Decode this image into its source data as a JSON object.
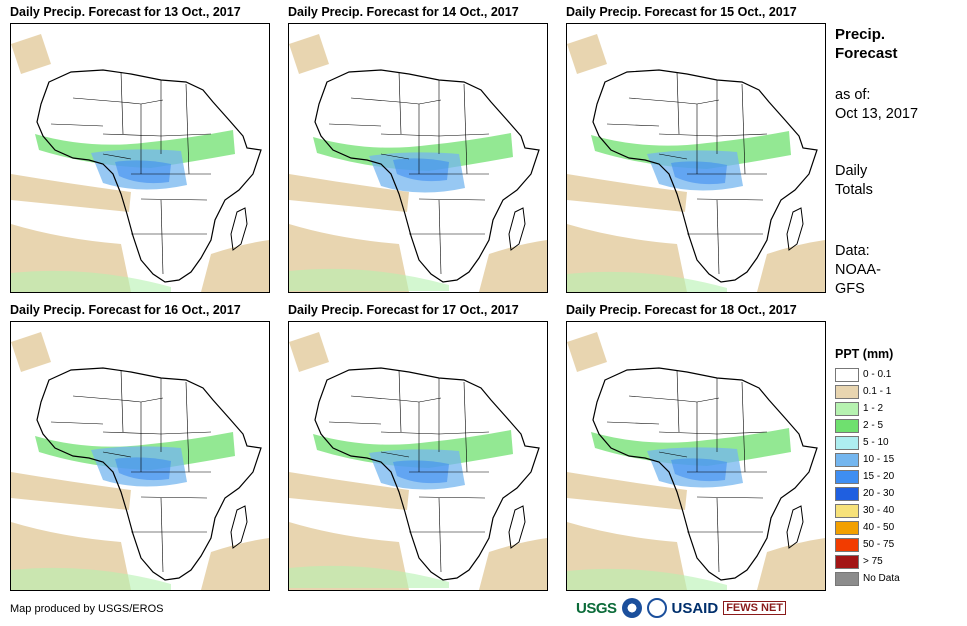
{
  "panels": [
    {
      "title": "Daily Precip. Forecast for 13 Oct., 2017",
      "map": "africa-precip-forecast-13-oct"
    },
    {
      "title": "Daily Precip. Forecast for 14 Oct., 2017",
      "map": "africa-precip-forecast-14-oct"
    },
    {
      "title": "Daily Precip. Forecast for 15 Oct., 2017",
      "map": "africa-precip-forecast-15-oct"
    },
    {
      "title": "Daily Precip. Forecast for 16 Oct., 2017",
      "map": "africa-precip-forecast-16-oct"
    },
    {
      "title": "Daily Precip. Forecast for 17 Oct., 2017",
      "map": "africa-precip-forecast-17-oct"
    },
    {
      "title": "Daily Precip. Forecast for 18 Oct., 2017",
      "map": "africa-precip-forecast-18-oct"
    }
  ],
  "sidebar": {
    "title_line1": "Precip.",
    "title_line2": "Forecast",
    "asof_line1": "as of:",
    "asof_line2": "Oct 13, 2017",
    "totals_line1": "Daily",
    "totals_line2": "Totals",
    "data_line1": "Data:",
    "data_line2": "NOAA-",
    "data_line3": "GFS"
  },
  "legend": {
    "title": "PPT (mm)",
    "items": [
      {
        "label": "0 - 0.1",
        "color": "#ffffff"
      },
      {
        "label": "0.1 - 1",
        "color": "#e8d5b0"
      },
      {
        "label": "1 - 2",
        "color": "#b6f2b0"
      },
      {
        "label": "2 - 5",
        "color": "#6fe06f"
      },
      {
        "label": "5 - 10",
        "color": "#aeeef0"
      },
      {
        "label": "10 - 15",
        "color": "#74b6ef"
      },
      {
        "label": "15 - 20",
        "color": "#3f8ef2"
      },
      {
        "label": "20 - 30",
        "color": "#1f5fe0"
      },
      {
        "label": "30 - 40",
        "color": "#f7e27a"
      },
      {
        "label": "40 - 50",
        "color": "#f2a000"
      },
      {
        "label": "50 - 75",
        "color": "#f23c00"
      },
      {
        "label": "> 75",
        "color": "#a31515"
      },
      {
        "label": "No Data",
        "color": "#8c8c8c"
      }
    ]
  },
  "footer": {
    "credit": "Map produced by USGS/EROS",
    "logos": {
      "usgs": "USGS",
      "usaid": "USAID",
      "fewsnet": "FEWS NET"
    }
  }
}
